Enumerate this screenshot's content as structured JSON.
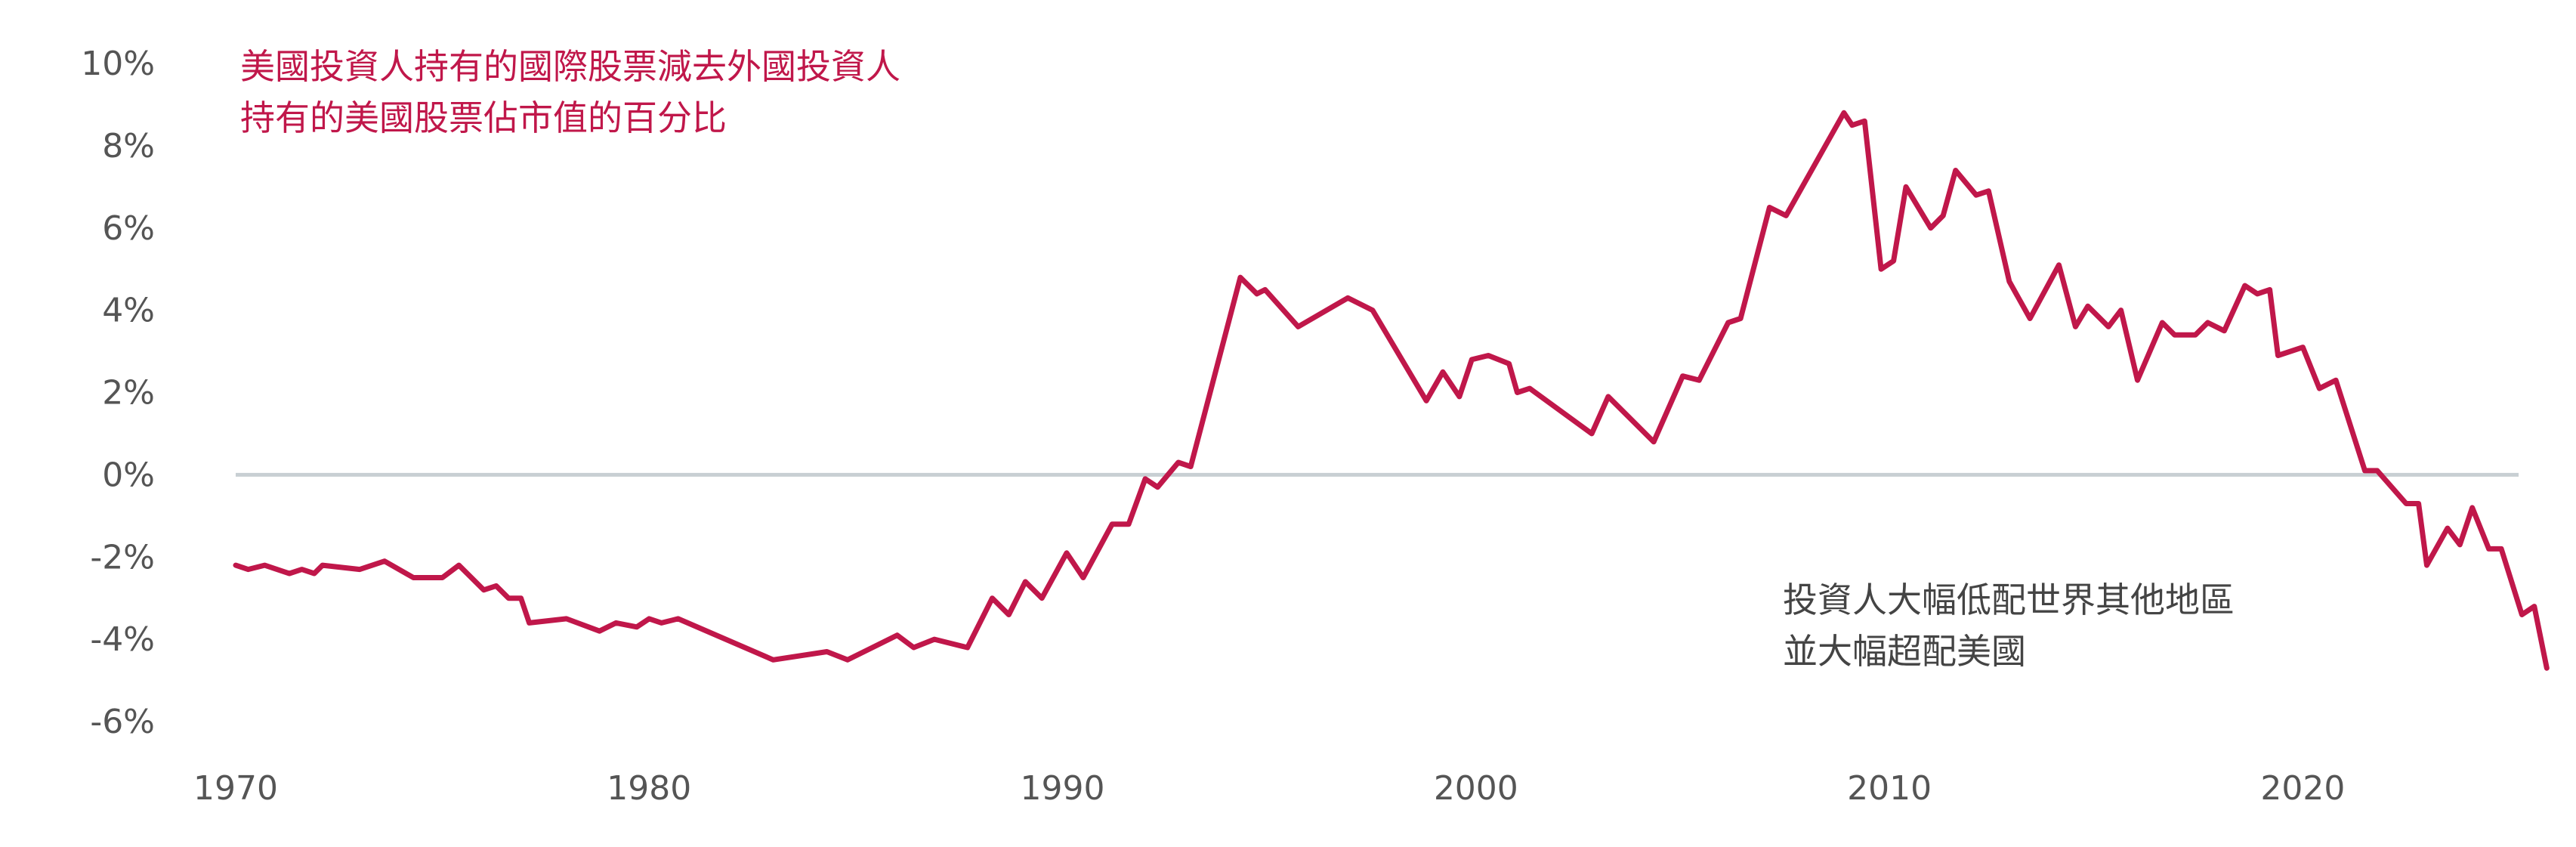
{
  "chart_data": {
    "type": "line",
    "ylim": [
      -6,
      10
    ],
    "y_ticks": [
      10,
      8,
      6,
      4,
      2,
      0,
      -2,
      -4,
      -6
    ],
    "y_tick_labels": [
      "10%",
      "8%",
      "6%",
      "4%",
      "2%",
      "0%",
      "-2%",
      "-4%",
      "-6%"
    ],
    "xlim": [
      1970,
      2025
    ],
    "x_ticks": [
      1970,
      1980,
      1990,
      2000,
      2010,
      2020
    ],
    "x_tick_labels": [
      "1970",
      "1980",
      "1990",
      "2000",
      "2010",
      "2020"
    ],
    "grid": false,
    "zero_line": true,
    "line_color": "#c0174a",
    "zero_line_color": "#c8cfd3",
    "annotations": {
      "top_left": [
        "美國投資人持有的國際股票減去外國投資人",
        "持有的美國股票佔市值的百分比"
      ],
      "bottom_right": [
        "投資人大幅低配世界其他地區",
        "並大幅超配美國"
      ]
    },
    "series": [
      {
        "values": [
          [
            1970.0,
            -2.2
          ],
          [
            1970.3,
            -2.3
          ],
          [
            1970.7,
            -2.2
          ],
          [
            1971.0,
            -2.3
          ],
          [
            1971.3,
            -2.4
          ],
          [
            1971.6,
            -2.3
          ],
          [
            1971.9,
            -2.4
          ],
          [
            1972.1,
            -2.2
          ],
          [
            1973.0,
            -2.3
          ],
          [
            1973.6,
            -2.1
          ],
          [
            1974.3,
            -2.5
          ],
          [
            1975.0,
            -2.5
          ],
          [
            1975.4,
            -2.2
          ],
          [
            1976.0,
            -2.8
          ],
          [
            1976.3,
            -2.7
          ],
          [
            1976.6,
            -3.0
          ],
          [
            1976.9,
            -3.0
          ],
          [
            1977.1,
            -3.6
          ],
          [
            1978.0,
            -3.5
          ],
          [
            1978.8,
            -3.8
          ],
          [
            1979.2,
            -3.6
          ],
          [
            1979.7,
            -3.7
          ],
          [
            1980.0,
            -3.5
          ],
          [
            1980.3,
            -3.6
          ],
          [
            1980.7,
            -3.5
          ],
          [
            1983.0,
            -4.5
          ],
          [
            1984.3,
            -4.3
          ],
          [
            1984.8,
            -4.5
          ],
          [
            1985.6,
            -4.1
          ],
          [
            1986.0,
            -3.9
          ],
          [
            1986.4,
            -4.2
          ],
          [
            1986.9,
            -4.0
          ],
          [
            1987.7,
            -4.2
          ],
          [
            1988.3,
            -3.0
          ],
          [
            1988.7,
            -3.4
          ],
          [
            1989.1,
            -2.6
          ],
          [
            1989.5,
            -3.0
          ],
          [
            1990.1,
            -1.9
          ],
          [
            1990.5,
            -2.5
          ],
          [
            1991.2,
            -1.2
          ],
          [
            1991.6,
            -1.2
          ],
          [
            1992.0,
            -0.1
          ],
          [
            1992.3,
            -0.3
          ],
          [
            1992.8,
            0.3
          ],
          [
            1993.1,
            0.2
          ],
          [
            1994.3,
            4.8
          ],
          [
            1994.7,
            4.4
          ],
          [
            1994.9,
            4.5
          ],
          [
            1995.7,
            3.6
          ],
          [
            1996.9,
            4.3
          ],
          [
            1997.5,
            4.0
          ],
          [
            1998.8,
            1.8
          ],
          [
            1999.2,
            2.5
          ],
          [
            1999.6,
            1.9
          ],
          [
            1999.9,
            2.8
          ],
          [
            2000.3,
            2.9
          ],
          [
            2000.8,
            2.7
          ],
          [
            2001.0,
            2.0
          ],
          [
            2001.3,
            2.1
          ],
          [
            2002.8,
            1.0
          ],
          [
            2003.2,
            1.9
          ],
          [
            2004.3,
            0.8
          ],
          [
            2005.0,
            2.4
          ],
          [
            2005.4,
            2.3
          ],
          [
            2006.1,
            3.7
          ],
          [
            2006.4,
            3.8
          ],
          [
            2007.1,
            6.5
          ],
          [
            2007.5,
            6.3
          ],
          [
            2008.9,
            8.8
          ],
          [
            2009.1,
            8.5
          ],
          [
            2009.4,
            8.6
          ],
          [
            2009.8,
            5.0
          ],
          [
            2010.1,
            5.2
          ],
          [
            2010.4,
            7.0
          ],
          [
            2011.0,
            6.0
          ],
          [
            2011.3,
            6.3
          ],
          [
            2011.6,
            7.4
          ],
          [
            2012.1,
            6.8
          ],
          [
            2012.4,
            6.9
          ],
          [
            2012.9,
            4.7
          ],
          [
            2013.4,
            3.8
          ],
          [
            2014.1,
            5.1
          ],
          [
            2014.5,
            3.6
          ],
          [
            2014.8,
            4.1
          ],
          [
            2015.3,
            3.6
          ],
          [
            2015.6,
            4.0
          ],
          [
            2016.0,
            2.3
          ],
          [
            2016.6,
            3.7
          ],
          [
            2016.9,
            3.4
          ],
          [
            2017.4,
            3.4
          ],
          [
            2017.7,
            3.7
          ],
          [
            2018.1,
            3.5
          ],
          [
            2018.6,
            4.6
          ],
          [
            2018.9,
            4.4
          ],
          [
            2019.2,
            4.5
          ],
          [
            2019.4,
            2.9
          ],
          [
            2020.0,
            3.1
          ],
          [
            2020.4,
            2.1
          ],
          [
            2020.8,
            2.3
          ],
          [
            2021.5,
            0.1
          ],
          [
            2021.8,
            0.1
          ],
          [
            2022.5,
            -0.7
          ],
          [
            2022.8,
            -0.7
          ],
          [
            2023.0,
            -2.2
          ],
          [
            2023.5,
            -1.3
          ],
          [
            2023.8,
            -1.7
          ],
          [
            2024.1,
            -0.8
          ],
          [
            2024.5,
            -1.8
          ],
          [
            2024.8,
            -1.8
          ],
          [
            2025.3,
            -3.4
          ],
          [
            2025.6,
            -3.2
          ],
          [
            2025.9,
            -4.7
          ]
        ]
      }
    ]
  }
}
